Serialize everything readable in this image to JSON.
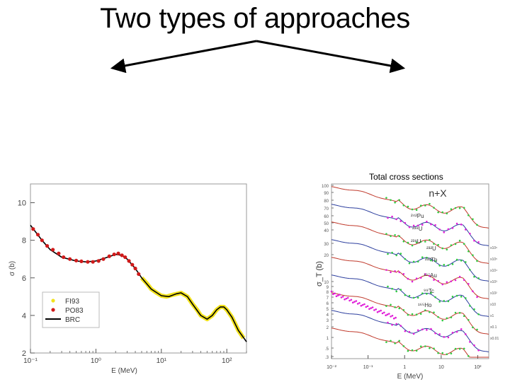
{
  "slide": {
    "title": "Two types of approaches",
    "right_caption": "Total cross sections"
  },
  "chart_data": [
    {
      "type": "line",
      "xscale": "log",
      "xlim": [
        0.1,
        200
      ],
      "ylim": [
        2,
        11
      ],
      "xlabel": "E (MeV)",
      "ylabel": "σ (b)",
      "x_ticks": [
        "10⁻¹",
        "10⁰",
        "10¹",
        "10²"
      ],
      "y_ticks": [
        "2",
        "4",
        "6",
        "8",
        "10"
      ],
      "legend": [
        "FI93",
        "PO83",
        "BRC"
      ],
      "legend_position": "bottom-left",
      "series": [
        {
          "name": "BRC",
          "color": "#000000",
          "points": [
            [
              0.1,
              8.8
            ],
            [
              0.15,
              8.0
            ],
            [
              0.2,
              7.5
            ],
            [
              0.3,
              7.1
            ],
            [
              0.5,
              6.9
            ],
            [
              0.7,
              6.85
            ],
            [
              1.0,
              6.9
            ],
            [
              1.5,
              7.1
            ],
            [
              2.0,
              7.25
            ],
            [
              2.5,
              7.2
            ],
            [
              3.0,
              7.0
            ],
            [
              4.0,
              6.5
            ],
            [
              5.0,
              6.0
            ],
            [
              7.0,
              5.4
            ],
            [
              10,
              5.05
            ],
            [
              13,
              5.0
            ],
            [
              17,
              5.15
            ],
            [
              20,
              5.2
            ],
            [
              25,
              5.0
            ],
            [
              30,
              4.6
            ],
            [
              40,
              4.0
            ],
            [
              50,
              3.8
            ],
            [
              60,
              4.0
            ],
            [
              70,
              4.3
            ],
            [
              80,
              4.45
            ],
            [
              90,
              4.45
            ],
            [
              100,
              4.3
            ],
            [
              120,
              3.9
            ],
            [
              150,
              3.2
            ],
            [
              200,
              2.6
            ]
          ]
        },
        {
          "name": "PO83",
          "color": "#d11a1a",
          "points": [
            [
              0.11,
              8.6
            ],
            [
              0.13,
              8.3
            ],
            [
              0.15,
              8.0
            ],
            [
              0.18,
              7.7
            ],
            [
              0.22,
              7.5
            ],
            [
              0.27,
              7.3
            ],
            [
              0.32,
              7.1
            ],
            [
              0.4,
              7.0
            ],
            [
              0.5,
              6.92
            ],
            [
              0.6,
              6.88
            ],
            [
              0.75,
              6.85
            ],
            [
              0.9,
              6.85
            ],
            [
              1.1,
              6.9
            ],
            [
              1.3,
              7.0
            ],
            [
              1.6,
              7.15
            ],
            [
              1.9,
              7.25
            ],
            [
              2.2,
              7.3
            ],
            [
              2.5,
              7.2
            ],
            [
              2.8,
              7.1
            ],
            [
              3.2,
              6.9
            ],
            [
              3.6,
              6.7
            ],
            [
              4.0,
              6.5
            ],
            [
              4.5,
              6.2
            ]
          ]
        },
        {
          "name": "FI93",
          "color": "#f2e21d",
          "points": [
            [
              5.0,
              6.0
            ],
            [
              6.0,
              5.7
            ],
            [
              7.0,
              5.4
            ],
            [
              8.5,
              5.2
            ],
            [
              10,
              5.05
            ],
            [
              12,
              5.0
            ],
            [
              15,
              5.1
            ],
            [
              20,
              5.2
            ],
            [
              25,
              5.0
            ],
            [
              30,
              4.6
            ],
            [
              35,
              4.3
            ],
            [
              40,
              4.0
            ],
            [
              50,
              3.8
            ],
            [
              60,
              4.0
            ],
            [
              70,
              4.3
            ],
            [
              80,
              4.45
            ],
            [
              90,
              4.45
            ],
            [
              100,
              4.3
            ],
            [
              120,
              3.9
            ],
            [
              150,
              3.2
            ],
            [
              180,
              2.8
            ]
          ]
        }
      ]
    },
    {
      "type": "line",
      "xscale": "log",
      "xlim": [
        0.01,
        200
      ],
      "xlabel": "E (MeV)",
      "ylabel": "σ_T (b)",
      "annotation": "n+X",
      "x_ticks": [
        "10⁻²",
        "10⁻¹",
        "1",
        "10",
        "10²"
      ],
      "y_ticks": [
        "100",
        "90",
        "80",
        "70",
        "60",
        "50",
        "40",
        "30",
        "20",
        "10",
        "9",
        "8",
        "7",
        "6",
        "5",
        "4",
        "3",
        "2",
        "1",
        ".5",
        ".3"
      ],
      "series_labels": [
        "²⁴²Pu",
        "²³⁸U",
        "²³⁸U",
        "²³²U",
        "²³²Th",
        "¹⁹⁷Au",
        "⁹⁹Tc",
        "¹⁶⁵Ho"
      ],
      "right_axis_labels": [
        "x10⁶",
        "x10⁵",
        "x10⁴",
        "x10³",
        "x10²",
        "x10",
        "x1",
        "x0.1",
        "x0.01"
      ]
    }
  ]
}
